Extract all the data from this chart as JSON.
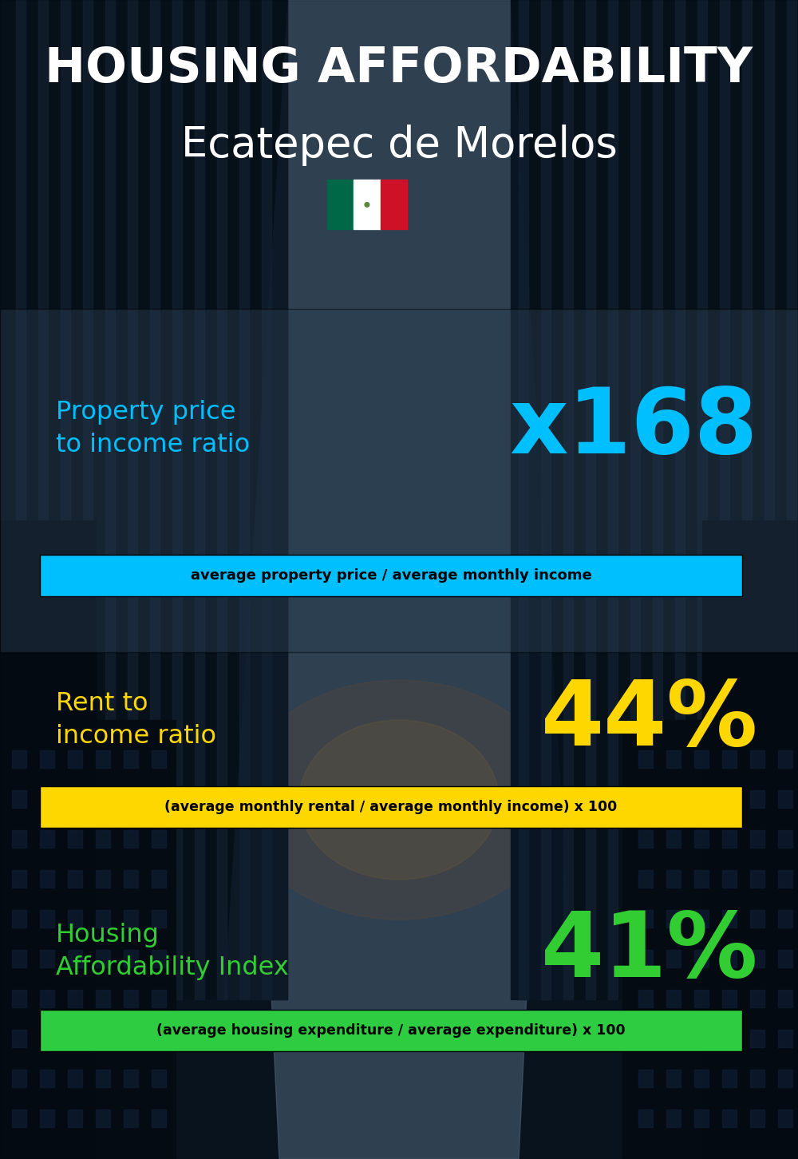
{
  "title_line1": "HOUSING AFFORDABILITY",
  "title_line2": "Ecatepec de Morelos",
  "section1_label": "Property price\nto income ratio",
  "section1_value": "x168",
  "section1_sublabel": "average property price / average monthly income",
  "section1_label_color": "#00BFFF",
  "section1_value_color": "#00BFFF",
  "section1_sub_bg": "#00BFFF",
  "section2_label": "Rent to\nincome ratio",
  "section2_value": "44%",
  "section2_sublabel": "(average monthly rental / average monthly income) x 100",
  "section2_label_color": "#FFD700",
  "section2_value_color": "#FFD700",
  "section2_sub_bg": "#FFD700",
  "section3_label": "Housing\nAffordability Index",
  "section3_value": "41%",
  "section3_sublabel": "(average housing expenditure / average expenditure) x 100",
  "section3_label_color": "#32CD32",
  "section3_value_color": "#32CD32",
  "section3_sub_bg": "#2ECC40",
  "bg_color": "#0d1b2a",
  "title_color": "#FFFFFF",
  "sub_text_color": "#000000",
  "flag_green": "#006847",
  "flag_white": "#FFFFFF",
  "flag_red": "#CE1126"
}
